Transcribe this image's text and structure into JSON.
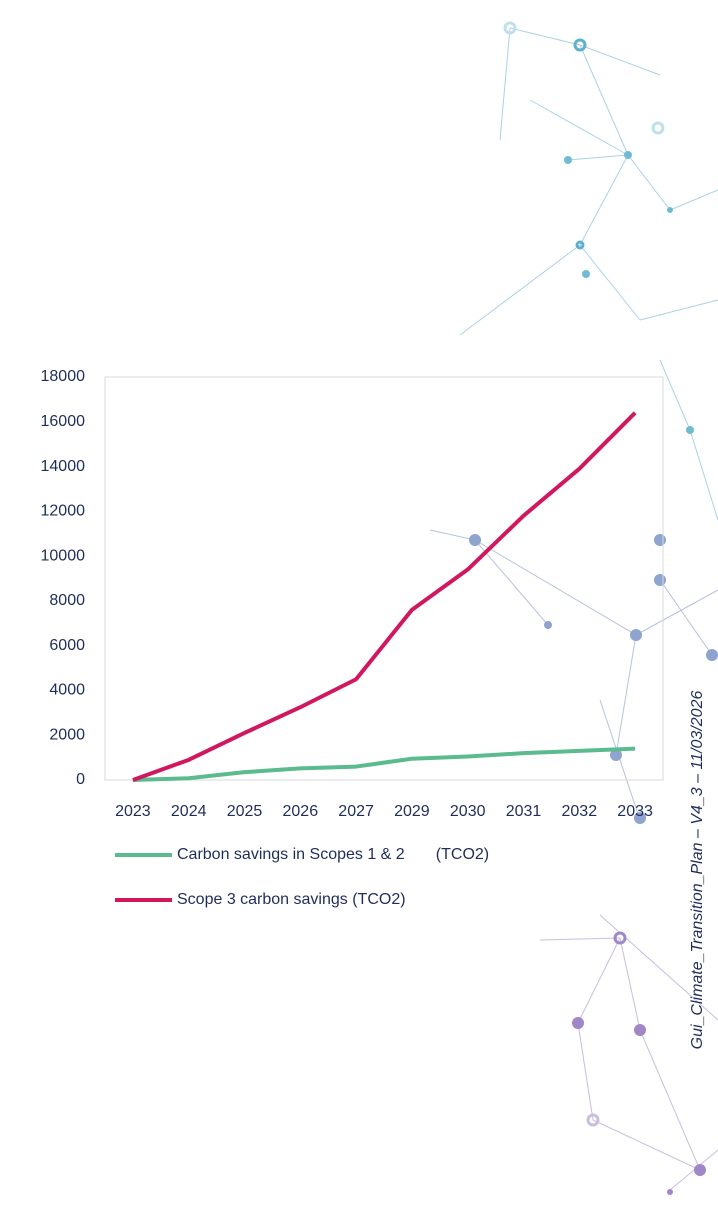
{
  "chart_data": {
    "type": "line",
    "categories": [
      "2023",
      "2024",
      "2025",
      "2026",
      "2027",
      "2029",
      "2030",
      "2031",
      "2032",
      "2033"
    ],
    "series": [
      {
        "name": "Carbon savings in Scopes 1 & 2       (TCO2)",
        "color": "#5cba8f",
        "values": [
          0,
          80,
          350,
          520,
          600,
          950,
          1050,
          1200,
          1300,
          1400
        ]
      },
      {
        "name": "Scope 3 carbon savings (TCO2)",
        "color": "#d0175f",
        "values": [
          0,
          900,
          2100,
          3250,
          4500,
          7600,
          9400,
          11800,
          13900,
          16400
        ]
      }
    ],
    "ylim": [
      0,
      18000
    ],
    "yticks": [
      0,
      2000,
      4000,
      6000,
      8000,
      10000,
      12000,
      14000,
      16000,
      18000
    ],
    "grid": false,
    "legend": "bottom"
  },
  "footer": "Gui_Climate_Transition_Plan – V4_3 – 11/03/2026"
}
